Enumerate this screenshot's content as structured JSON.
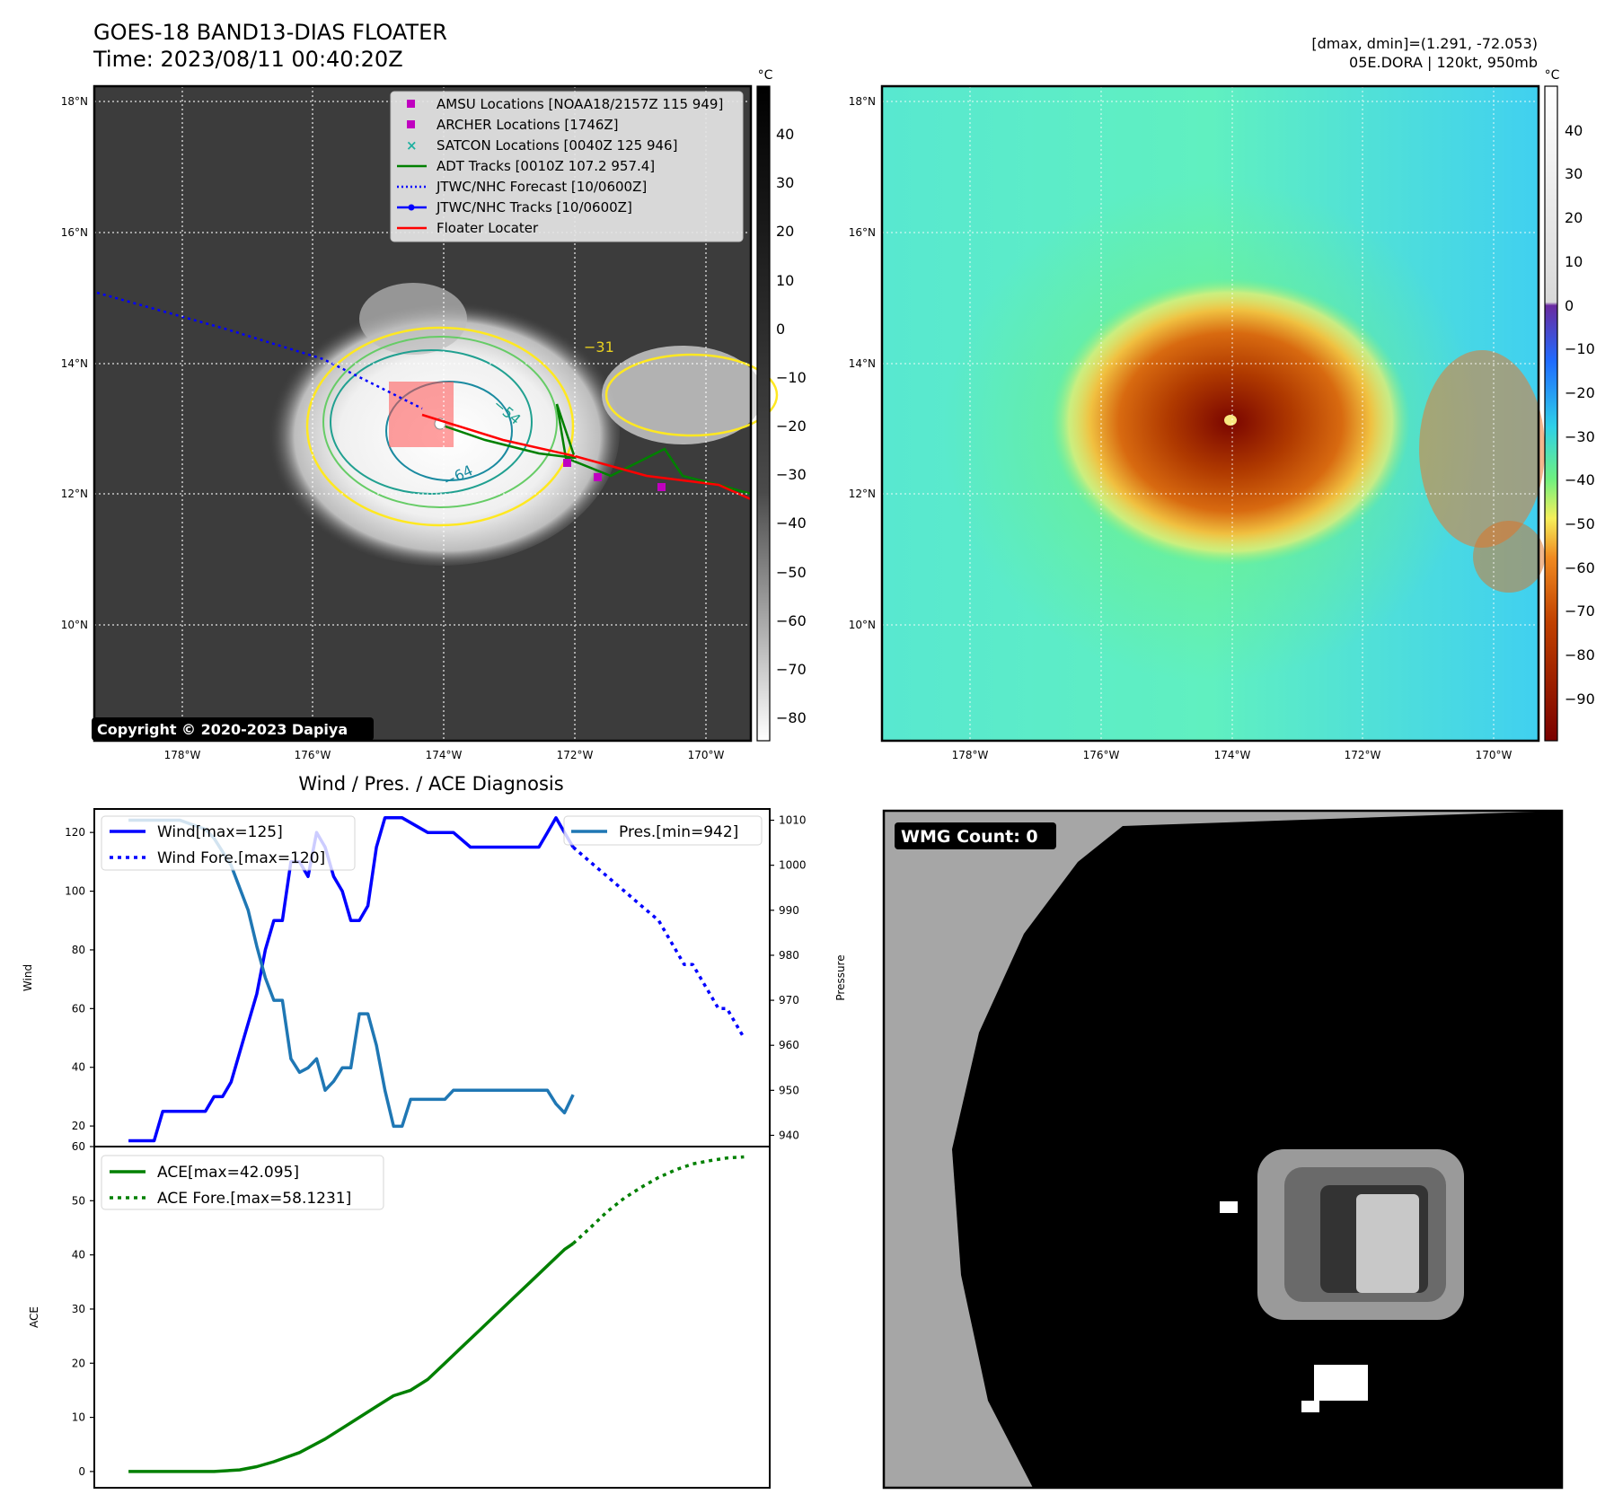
{
  "header": {
    "title": "GOES-18 BAND13-DIAS FLOATER",
    "time": "Time: 2023/08/11 00:40:20Z",
    "dmax_dmin": "[dmax, dmin]=(1.291, -72.053)",
    "storm": "05E.DORA | 120kt, 950mb"
  },
  "ir_panel": {
    "unit": "°C",
    "lat_labels": [
      "18°N",
      "16°N",
      "14°N",
      "12°N",
      "10°N"
    ],
    "lon_labels": [
      "178°W",
      "176°W",
      "174°W",
      "172°W",
      "170°W"
    ],
    "colorbar_ticks": [
      "40",
      "30",
      "20",
      "10",
      "0",
      "−10",
      "−20",
      "−30",
      "−40",
      "−50",
      "−60",
      "−70",
      "−80"
    ],
    "contour_labels": [
      "−31",
      "−54",
      "−64"
    ],
    "copyright": "Copyright © 2020-2023 Dapiya",
    "legend": [
      {
        "label": "AMSU Locations [NOAA18/2157Z 115 949]",
        "marker": "square",
        "color": "#c000c0"
      },
      {
        "label": "ARCHER Locations [1746Z]",
        "marker": "square",
        "color": "#c000c0"
      },
      {
        "label": "SATCON Locations [0040Z 125 946]",
        "marker": "x",
        "color": "#20b0a0"
      },
      {
        "label": "ADT Tracks [0010Z 107.2 957.4]",
        "marker": "line",
        "color": "#008000"
      },
      {
        "label": "JTWC/NHC Forecast [10/0600Z]",
        "marker": "dotted",
        "color": "#0000ff"
      },
      {
        "label": "JTWC/NHC Tracks [10/0600Z]",
        "marker": "line-dot",
        "color": "#0000ff"
      },
      {
        "label": "Floater Locater",
        "marker": "line",
        "color": "#ff0000"
      }
    ]
  },
  "color_panel": {
    "unit": "°C",
    "lat_labels": [
      "18°N",
      "16°N",
      "14°N",
      "12°N",
      "10°N"
    ],
    "lon_labels": [
      "178°W",
      "176°W",
      "174°W",
      "172°W",
      "170°W"
    ],
    "colorbar_ticks": [
      "40",
      "30",
      "20",
      "10",
      "0",
      "−10",
      "−20",
      "−30",
      "−40",
      "−50",
      "−60",
      "−70",
      "−80",
      "−90"
    ]
  },
  "wmg_panel": {
    "label": "WMG Count: 0"
  },
  "chart_data": [
    {
      "type": "line",
      "title": "Wind / Pres. / ACE Diagnosis",
      "ylabel": "Wind",
      "y2label": "Pressure",
      "ylim": [
        13,
        128
      ],
      "y2lim": [
        937.5,
        1012.5
      ],
      "yticks": [
        20,
        40,
        60,
        80,
        100,
        120
      ],
      "y2ticks": [
        940,
        950,
        960,
        970,
        980,
        990,
        1000,
        1010
      ],
      "series": [
        {
          "name": "Wind[max=125]",
          "axis": "left",
          "style": "solid",
          "color": "#0000ff",
          "x": [
            0,
            4,
            6,
            8,
            11,
            14,
            16,
            18,
            20,
            22,
            24,
            26,
            28,
            30,
            32,
            34,
            36,
            38,
            40,
            42,
            44,
            46,
            48,
            50,
            52,
            54,
            56,
            58,
            60,
            64,
            70,
            76,
            80,
            84,
            88,
            92,
            96,
            98,
            100,
            102,
            104
          ],
          "y": [
            15,
            15,
            15,
            25,
            25,
            25,
            25,
            25,
            30,
            30,
            35,
            45,
            55,
            65,
            80,
            90,
            90,
            110,
            110,
            105,
            120,
            115,
            105,
            100,
            90,
            90,
            95,
            115,
            125,
            125,
            120,
            120,
            115,
            115,
            115,
            115,
            115,
            120,
            125,
            120,
            115
          ]
        },
        {
          "name": "Wind Fore.[max=120]",
          "axis": "left",
          "style": "dotted",
          "color": "#0000ff",
          "x": [
            104,
            108,
            112,
            116,
            120,
            124,
            126,
            128,
            130,
            132,
            134,
            136,
            138,
            140,
            142,
            144
          ],
          "y": [
            115,
            110,
            105,
            100,
            95,
            90,
            85,
            80,
            75,
            75,
            70,
            65,
            60,
            60,
            55,
            50
          ]
        },
        {
          "name": "Pres.[min=942]",
          "axis": "right",
          "style": "solid",
          "color": "#1f77b4",
          "x": [
            0,
            8,
            12,
            18,
            20,
            24,
            26,
            28,
            30,
            32,
            34,
            36,
            38,
            40,
            42,
            44,
            46,
            48,
            50,
            52,
            54,
            56,
            58,
            60,
            62,
            64,
            66,
            68,
            70,
            72,
            74,
            76,
            80,
            84,
            88,
            92,
            96,
            98,
            100,
            102,
            104
          ],
          "y": [
            1010,
            1010,
            1010,
            1008,
            1006,
            1000,
            995,
            990,
            982,
            975,
            970,
            970,
            957,
            954,
            955,
            957,
            950,
            952,
            955,
            955,
            967,
            967,
            960,
            950,
            942,
            942,
            948,
            948,
            948,
            948,
            948,
            950,
            950,
            950,
            950,
            950,
            950,
            950,
            947,
            945,
            949
          ]
        }
      ]
    },
    {
      "type": "line",
      "ylabel": "ACE",
      "ylim": [
        -3,
        60
      ],
      "yticks": [
        0,
        10,
        20,
        30,
        40,
        50,
        60
      ],
      "series": [
        {
          "name": "ACE[max=42.095]",
          "style": "solid",
          "color": "#008000",
          "x": [
            0,
            20,
            26,
            30,
            34,
            40,
            46,
            52,
            58,
            62,
            66,
            70,
            74,
            78,
            82,
            86,
            90,
            94,
            98,
            102,
            104
          ],
          "y": [
            0,
            0,
            0.3,
            0.9,
            1.8,
            3.5,
            6,
            9,
            12,
            14,
            15,
            17,
            20,
            23,
            26,
            29,
            32,
            35,
            38,
            41,
            42.1
          ]
        },
        {
          "name": "ACE Fore.[max=58.1231]",
          "style": "dotted",
          "color": "#008000",
          "x": [
            104,
            108,
            112,
            116,
            120,
            124,
            128,
            132,
            136,
            140,
            144
          ],
          "y": [
            42.1,
            45,
            48,
            50.5,
            52.5,
            54.3,
            55.7,
            56.8,
            57.4,
            57.9,
            58.1
          ]
        }
      ]
    }
  ]
}
